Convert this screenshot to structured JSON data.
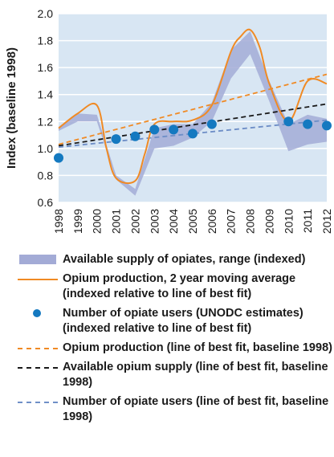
{
  "chart_data": {
    "type": "line",
    "ylabel": "Index (baseline 1998)",
    "xlabel": "",
    "ylim": [
      0.6,
      2.0
    ],
    "yticks": [
      "0.6",
      "0.8",
      "1.0",
      "1.2",
      "1.4",
      "1.6",
      "1.8",
      "2.0"
    ],
    "categories": [
      "1998",
      "1999",
      "2000",
      "2001",
      "2002",
      "2003",
      "2004",
      "2005",
      "2006",
      "2007",
      "2008",
      "2009",
      "2010",
      "2011",
      "2012"
    ],
    "grid": true,
    "series": [
      {
        "name": "Available supply of opiates, range (indexed)",
        "kind": "band",
        "color": "#a3abd6",
        "x": [
          1998,
          1999,
          2000,
          2001,
          2002,
          2003,
          2004,
          2005,
          2006,
          2007,
          2008,
          2009,
          2010,
          2011,
          2012
        ],
        "low": [
          1.13,
          1.2,
          1.2,
          0.77,
          0.65,
          1.0,
          1.02,
          1.08,
          1.2,
          1.52,
          1.7,
          1.35,
          0.98,
          1.03,
          1.05
        ],
        "high": [
          1.16,
          1.26,
          1.25,
          0.8,
          0.7,
          1.15,
          1.18,
          1.18,
          1.34,
          1.73,
          1.87,
          1.5,
          1.18,
          1.25,
          1.22
        ]
      },
      {
        "name": "Opium production, 2 year moving average (indexed relative to line of best fit)",
        "kind": "line",
        "color": "#f08a24",
        "x": [
          1998,
          1999,
          2000,
          2000.5,
          2001,
          2002,
          2002.5,
          2003,
          2004,
          2005,
          2006,
          2007,
          2007.5,
          2008,
          2008.5,
          2009,
          2010,
          2011,
          2012
        ],
        "values": [
          1.15,
          1.26,
          1.32,
          1.0,
          0.78,
          0.76,
          0.96,
          1.18,
          1.2,
          1.21,
          1.32,
          1.72,
          1.83,
          1.88,
          1.75,
          1.48,
          1.2,
          1.5,
          1.48
        ]
      },
      {
        "name": "Number of opiate users (UNODC estimates) (indexed relative to line of best fit)",
        "kind": "scatter",
        "color": "#1479c0",
        "x": [
          1998,
          2001,
          2002,
          2003,
          2004,
          2005,
          2006,
          2010,
          2011,
          2012
        ],
        "values": [
          0.93,
          1.07,
          1.09,
          1.14,
          1.14,
          1.11,
          1.18,
          1.2,
          1.18,
          1.17
        ]
      },
      {
        "name": "Opium production (line of best fit, baseline 1998)",
        "kind": "dashed",
        "color": "#f08a24",
        "x": [
          1998,
          2012
        ],
        "values": [
          1.03,
          1.55
        ]
      },
      {
        "name": "Available opium supply (line of best fit, baseline 1998)",
        "kind": "dashed",
        "color": "#1a1a1a",
        "x": [
          1998,
          2012
        ],
        "values": [
          1.02,
          1.33
        ]
      },
      {
        "name": "Number of opiate users (line of best fit, baseline 1998)",
        "kind": "dashed",
        "color": "#6f8fc7",
        "x": [
          1998,
          2012
        ],
        "values": [
          1.01,
          1.21
        ]
      }
    ]
  },
  "legend": {
    "band": "Available supply of opiates, range (indexed)",
    "production_line": "Opium production, 2 year moving average (indexed relative to line of best fit)",
    "users_dots": "Number of opiate users (UNODC estimates) (indexed relative to line of best fit)",
    "production_fit": "Opium production (line of best fit, baseline 1998)",
    "supply_fit": "Available opium supply (line of best fit, baseline 1998)",
    "users_fit": "Number of opiate users (line of best fit, baseline 1998)"
  },
  "colors": {
    "plot_background": "#d8e6f3",
    "gridline": "#ffffff",
    "text": "#1a1a1a"
  }
}
